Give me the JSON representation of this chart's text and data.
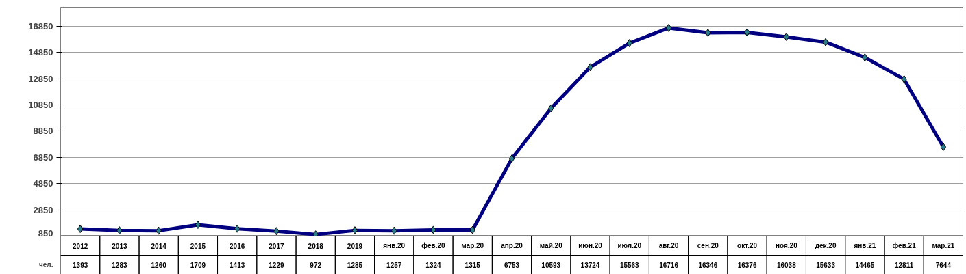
{
  "chart_data": {
    "type": "line",
    "categories": [
      "2012",
      "2013",
      "2014",
      "2015",
      "2016",
      "2017",
      "2018",
      "2019",
      "янв.20",
      "фев.20",
      "мар.20",
      "апр.20",
      "май.20",
      "июн.20",
      "июл.20",
      "авг.20",
      "сен.20",
      "окт.20",
      "ноя.20",
      "дек.20",
      "янв.21",
      "фев.21",
      "мар.21"
    ],
    "series": [
      {
        "name": "чел.",
        "color": "#000080",
        "values": [
          1393,
          1283,
          1260,
          1709,
          1413,
          1229,
          972,
          1285,
          1257,
          1324,
          1315,
          6753,
          10593,
          13724,
          15563,
          16716,
          16346,
          16376,
          16038,
          15633,
          14465,
          12811,
          7644
        ]
      }
    ],
    "ylim": [
      850,
      18300
    ],
    "yticks": [
      850,
      2850,
      4850,
      6850,
      8850,
      10850,
      12850,
      14850,
      16850
    ],
    "grid": "y",
    "marker": "diamond",
    "line_style": "solid",
    "data_labels": true
  }
}
